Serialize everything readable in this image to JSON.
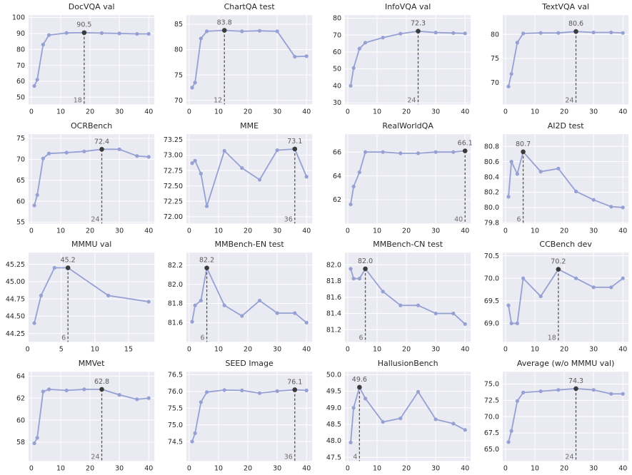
{
  "style": {
    "line_color": "#96a1d3",
    "marker_color": "#96a1d3",
    "peak_color": "#3b3b3b",
    "peak_line_color": "#555555",
    "plot_bg": "#eaeaf2",
    "grid_color": "#ffffff",
    "text_color": "#262626",
    "annotation_color": "#595959"
  },
  "chart_data": [
    {
      "type": "line",
      "title": "DocVQA val",
      "x": [
        1,
        2,
        4,
        6,
        12,
        18,
        24,
        30,
        36,
        40
      ],
      "y": [
        57,
        61,
        83,
        89,
        90.3,
        90.5,
        90.2,
        90.0,
        89.7,
        89.7
      ],
      "xlim": [
        -0.95,
        41.95
      ],
      "ylim": [
        45.5,
        101.5
      ],
      "xticks": [
        0,
        10,
        20,
        30,
        40
      ],
      "xtick_labels": [
        "0",
        "10",
        "20",
        "30",
        "40"
      ],
      "yticks": [
        50,
        60,
        70,
        80,
        90,
        100
      ],
      "ytick_labels": [
        "50",
        "60",
        "70",
        "80",
        "90",
        "100"
      ],
      "peak_index": 5,
      "peak_label": "90.5",
      "peak_x_label": "18"
    },
    {
      "type": "line",
      "title": "ChartQA test",
      "x": [
        1,
        2,
        4,
        6,
        12,
        18,
        24,
        30,
        36,
        40
      ],
      "y": [
        72.5,
        73.5,
        82.2,
        83.6,
        83.8,
        83.6,
        83.7,
        83.6,
        78.6,
        78.7
      ],
      "xlim": [
        -0.95,
        41.95
      ],
      "ylim": [
        69.2,
        86.8
      ],
      "xticks": [
        0,
        10,
        20,
        30,
        40
      ],
      "xtick_labels": [
        "0",
        "10",
        "20",
        "30",
        "40"
      ],
      "yticks": [
        70,
        75,
        80,
        85
      ],
      "ytick_labels": [
        "70",
        "75",
        "80",
        "85"
      ],
      "peak_index": 4,
      "peak_label": "83.8",
      "peak_x_label": "12"
    },
    {
      "type": "line",
      "title": "InfoVQA val",
      "x": [
        1,
        2,
        4,
        6,
        12,
        18,
        24,
        30,
        36,
        40
      ],
      "y": [
        40,
        50.5,
        62,
        65.5,
        68.5,
        70.8,
        72.3,
        71.5,
        71.2,
        71.0
      ],
      "xlim": [
        -0.95,
        41.95
      ],
      "ylim": [
        29,
        81.8
      ],
      "xticks": [
        0,
        10,
        20,
        30,
        40
      ],
      "xtick_labels": [
        "0",
        "10",
        "20",
        "30",
        "40"
      ],
      "yticks": [
        30,
        40,
        50,
        60,
        70,
        80
      ],
      "ytick_labels": [
        "30",
        "40",
        "50",
        "60",
        "70",
        "80"
      ],
      "peak_index": 6,
      "peak_label": "72.3",
      "peak_x_label": "24"
    },
    {
      "type": "line",
      "title": "TextVQA val",
      "x": [
        1,
        2,
        4,
        6,
        12,
        18,
        24,
        30,
        36,
        40
      ],
      "y": [
        69.2,
        71.8,
        78.3,
        80.2,
        80.3,
        80.3,
        80.6,
        80.4,
        80.4,
        80.3
      ],
      "xlim": [
        -0.95,
        41.95
      ],
      "ylim": [
        65.5,
        84
      ],
      "xticks": [
        0,
        10,
        20,
        30,
        40
      ],
      "xtick_labels": [
        "0",
        "10",
        "20",
        "30",
        "40"
      ],
      "yticks": [
        70,
        75,
        80
      ],
      "ytick_labels": [
        "70",
        "75",
        "80"
      ],
      "peak_index": 6,
      "peak_label": "80.6",
      "peak_x_label": "24"
    },
    {
      "type": "line",
      "title": "OCRBench",
      "x": [
        1,
        2,
        4,
        6,
        12,
        18,
        24,
        30,
        36,
        40
      ],
      "y": [
        59,
        61.5,
        70.2,
        71.4,
        71.6,
        71.9,
        72.4,
        72.4,
        70.8,
        70.6
      ],
      "xlim": [
        -0.95,
        41.95
      ],
      "ylim": [
        54.7,
        76
      ],
      "xticks": [
        0,
        10,
        20,
        30,
        40
      ],
      "xtick_labels": [
        "0",
        "10",
        "20",
        "30",
        "40"
      ],
      "yticks": [
        55,
        60,
        65,
        70,
        75
      ],
      "ytick_labels": [
        "55",
        "60",
        "65",
        "70",
        "75"
      ],
      "peak_index": 6,
      "peak_label": "72.4",
      "peak_x_label": "24"
    },
    {
      "type": "line",
      "title": "MME",
      "x": [
        1,
        2,
        4,
        6,
        12,
        18,
        24,
        30,
        36,
        40
      ],
      "y": [
        72.87,
        72.91,
        72.7,
        72.17,
        73.07,
        72.79,
        72.6,
        73.08,
        73.1,
        72.65
      ],
      "xlim": [
        -0.95,
        41.95
      ],
      "ylim": [
        71.89,
        73.34
      ],
      "xticks": [
        0,
        10,
        20,
        30,
        40
      ],
      "xtick_labels": [
        "0",
        "10",
        "20",
        "30",
        "40"
      ],
      "yticks": [
        72.0,
        72.25,
        72.5,
        72.75,
        73.0,
        73.25
      ],
      "ytick_labels": [
        "72.00",
        "72.25",
        "72.50",
        "72.75",
        "73.00",
        "73.25"
      ],
      "peak_index": 8,
      "peak_label": "73.1",
      "peak_x_label": "36"
    },
    {
      "type": "line",
      "title": "RealWorldQA",
      "x": [
        1,
        2,
        4,
        6,
        12,
        18,
        24,
        30,
        36,
        40
      ],
      "y": [
        61.6,
        63.1,
        64.3,
        66.0,
        66.0,
        65.9,
        65.9,
        66.0,
        66.0,
        66.1
      ],
      "xlim": [
        -0.95,
        41.95
      ],
      "ylim": [
        60,
        67.5
      ],
      "xticks": [
        0,
        10,
        20,
        30,
        40
      ],
      "xtick_labels": [
        "0",
        "10",
        "20",
        "30",
        "40"
      ],
      "yticks": [
        62,
        64,
        66
      ],
      "ytick_labels": [
        "62",
        "64",
        "66"
      ],
      "peak_index": 9,
      "peak_label": "66.1",
      "peak_x_label": "40"
    },
    {
      "type": "line",
      "title": "AI2D test",
      "x": [
        1,
        2,
        4,
        6,
        12,
        18,
        24,
        30,
        36,
        40
      ],
      "y": [
        80.14,
        80.6,
        80.44,
        80.73,
        80.47,
        80.51,
        80.21,
        80.1,
        80.01,
        80.0
      ],
      "xlim": [
        -0.95,
        41.95
      ],
      "ylim": [
        79.79,
        80.96
      ],
      "xticks": [
        0,
        10,
        20,
        30,
        40
      ],
      "xtick_labels": [
        "0",
        "10",
        "20",
        "30",
        "40"
      ],
      "yticks": [
        79.8,
        80.0,
        80.2,
        80.4,
        80.6,
        80.8
      ],
      "ytick_labels": [
        "79.8",
        "80.0",
        "80.2",
        "80.4",
        "80.6",
        "80.8"
      ],
      "peak_index": 3,
      "peak_label": "80.7",
      "peak_x_label": "6"
    },
    {
      "type": "line",
      "title": "MMMU val",
      "x": [
        1,
        2,
        4,
        6,
        12,
        18
      ],
      "y": [
        44.4,
        44.8,
        45.2,
        45.2,
        44.8,
        44.71
      ],
      "xlim": [
        0.15,
        18.85
      ],
      "ylim": [
        44.13,
        45.42
      ],
      "xticks": [
        0,
        5,
        10,
        15
      ],
      "xtick_labels": [
        "0",
        "5",
        "10",
        "15"
      ],
      "yticks": [
        44.25,
        44.5,
        44.75,
        45.0,
        45.25
      ],
      "ytick_labels": [
        "44.25",
        "44.50",
        "44.75",
        "45.00",
        "45.25"
      ],
      "peak_index": 3,
      "peak_label": "45.2",
      "peak_x_label": "6"
    },
    {
      "type": "line",
      "title": "MMBench-EN test",
      "x": [
        1,
        2,
        4,
        6,
        12,
        18,
        24,
        30,
        36,
        40
      ],
      "y": [
        81.61,
        81.78,
        81.83,
        82.17,
        81.78,
        81.67,
        81.83,
        81.7,
        81.7,
        81.6
      ],
      "xlim": [
        -0.95,
        41.95
      ],
      "ylim": [
        81.4,
        82.33
      ],
      "xticks": [
        0,
        10,
        20,
        30,
        40
      ],
      "xtick_labels": [
        "0",
        "10",
        "20",
        "30",
        "40"
      ],
      "yticks": [
        81.6,
        81.8,
        82.0,
        82.2
      ],
      "ytick_labels": [
        "81.6",
        "81.8",
        "82.0",
        "82.2"
      ],
      "peak_index": 3,
      "peak_label": "82.2",
      "peak_x_label": "6"
    },
    {
      "type": "line",
      "title": "MMBench-CN test",
      "x": [
        1,
        2,
        4,
        6,
        12,
        18,
        24,
        30,
        36,
        40
      ],
      "y": [
        81.95,
        81.83,
        81.83,
        81.95,
        81.67,
        81.5,
        81.5,
        81.4,
        81.4,
        81.27
      ],
      "xlim": [
        -0.95,
        41.95
      ],
      "ylim": [
        81.05,
        82.15
      ],
      "xticks": [
        0,
        10,
        20,
        30,
        40
      ],
      "xtick_labels": [
        "0",
        "10",
        "20",
        "30",
        "40"
      ],
      "yticks": [
        81.2,
        81.4,
        81.6,
        81.8,
        82.0
      ],
      "ytick_labels": [
        "81.2",
        "81.4",
        "81.6",
        "81.8",
        "82.0"
      ],
      "peak_index": 3,
      "peak_label": "82.0",
      "peak_x_label": "6"
    },
    {
      "type": "line",
      "title": "CCBench dev",
      "x": [
        1,
        2,
        4,
        6,
        12,
        18,
        24,
        30,
        36,
        40
      ],
      "y": [
        69.4,
        69.0,
        69.0,
        70.0,
        69.6,
        70.2,
        70.0,
        69.8,
        69.8,
        70.0
      ],
      "xlim": [
        -0.95,
        41.95
      ],
      "ylim": [
        68.59,
        70.57
      ],
      "xticks": [
        0,
        10,
        20,
        30,
        40
      ],
      "xtick_labels": [
        "0",
        "10",
        "20",
        "30",
        "40"
      ],
      "yticks": [
        69.0,
        69.5,
        70.0,
        70.5
      ],
      "ytick_labels": [
        "69.0",
        "69.5",
        "70.0",
        "70.5"
      ],
      "peak_index": 5,
      "peak_label": "70.2",
      "peak_x_label": "18"
    },
    {
      "type": "line",
      "title": "MMVet",
      "x": [
        1,
        2,
        4,
        6,
        12,
        18,
        24,
        30,
        36,
        40
      ],
      "y": [
        57.9,
        58.4,
        62.6,
        62.8,
        62.7,
        62.8,
        62.8,
        62.3,
        61.9,
        62.0
      ],
      "xlim": [
        -0.95,
        41.95
      ],
      "ylim": [
        56.3,
        64.4
      ],
      "xticks": [
        0,
        10,
        20,
        30,
        40
      ],
      "xtick_labels": [
        "0",
        "10",
        "20",
        "30",
        "40"
      ],
      "yticks": [
        58,
        60,
        62,
        64
      ],
      "ytick_labels": [
        "58",
        "60",
        "62",
        "64"
      ],
      "peak_index": 6,
      "peak_label": "62.8",
      "peak_x_label": "24"
    },
    {
      "type": "line",
      "title": "SEED Image",
      "x": [
        1,
        2,
        4,
        6,
        12,
        18,
        24,
        30,
        36,
        40
      ],
      "y": [
        74.5,
        74.75,
        75.68,
        75.98,
        76.04,
        76.03,
        75.95,
        76.01,
        76.05,
        76.03
      ],
      "xlim": [
        -0.95,
        41.95
      ],
      "ylim": [
        73.92,
        76.59
      ],
      "xticks": [
        0,
        10,
        20,
        30,
        40
      ],
      "xtick_labels": [
        "0",
        "10",
        "20",
        "30",
        "40"
      ],
      "yticks": [
        74.5,
        75.0,
        75.5,
        76.0,
        76.5
      ],
      "ytick_labels": [
        "74.5",
        "75.0",
        "75.5",
        "76.0",
        "76.5"
      ],
      "peak_index": 8,
      "peak_label": "76.1",
      "peak_x_label": "36"
    },
    {
      "type": "line",
      "title": "HallusionBench",
      "x": [
        1,
        2,
        4,
        6,
        12,
        18,
        24,
        30,
        36,
        40
      ],
      "y": [
        47.95,
        49.0,
        49.62,
        49.28,
        48.57,
        48.68,
        49.48,
        48.65,
        48.52,
        48.33
      ],
      "xlim": [
        -0.95,
        41.95
      ],
      "ylim": [
        47.39,
        50.09
      ],
      "xticks": [
        0,
        10,
        20,
        30,
        40
      ],
      "xtick_labels": [
        "0",
        "10",
        "20",
        "30",
        "40"
      ],
      "yticks": [
        47.5,
        48.0,
        48.5,
        49.0,
        49.5,
        50.0
      ],
      "ytick_labels": [
        "47.5",
        "48.0",
        "48.5",
        "49.0",
        "49.5",
        "50.0"
      ],
      "peak_index": 2,
      "peak_label": "49.6",
      "peak_x_label": "4"
    },
    {
      "type": "line",
      "title": "Average (w/o MMMU val)",
      "x": [
        1,
        2,
        4,
        6,
        12,
        18,
        24,
        30,
        36,
        40
      ],
      "y": [
        66.1,
        67.8,
        72.4,
        73.7,
        73.9,
        74.1,
        74.3,
        74.1,
        73.5,
        73.5
      ],
      "xlim": [
        -0.95,
        41.95
      ],
      "ylim": [
        63.2,
        76.9
      ],
      "xticks": [
        0,
        10,
        20,
        30,
        40
      ],
      "xtick_labels": [
        "0",
        "10",
        "20",
        "30",
        "40"
      ],
      "yticks": [
        65.0,
        67.5,
        70.0,
        72.5,
        75.0
      ],
      "ytick_labels": [
        "65.0",
        "67.5",
        "70.0",
        "72.5",
        "75.0"
      ],
      "peak_index": 6,
      "peak_label": "74.3",
      "peak_x_label": "24"
    }
  ]
}
